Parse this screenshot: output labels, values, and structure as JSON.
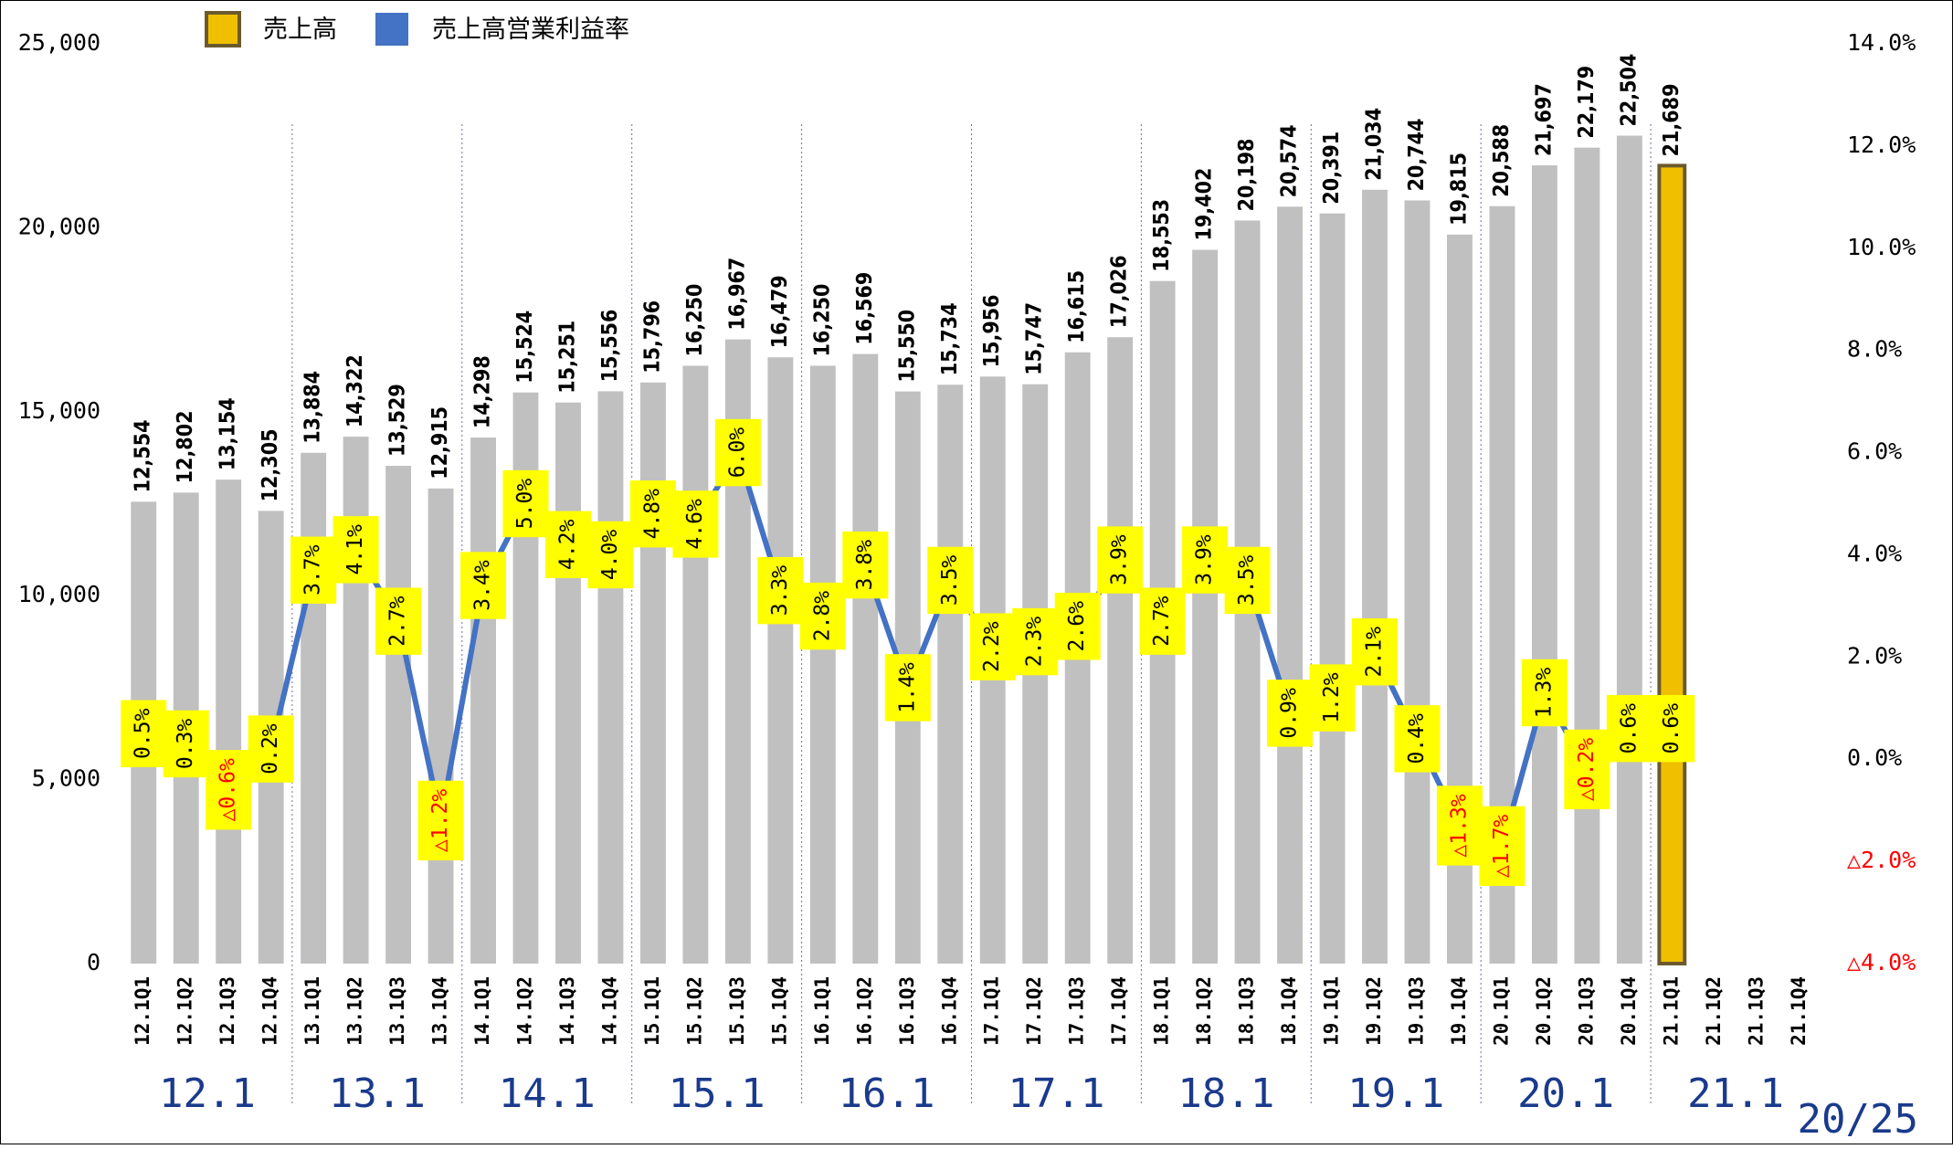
{
  "chart_data": {
    "type": "bar-line",
    "legend": "top-left",
    "categories": [
      "12.1Q1",
      "12.1Q2",
      "12.1Q3",
      "12.1Q4",
      "13.1Q1",
      "13.1Q2",
      "13.1Q3",
      "13.1Q4",
      "14.1Q1",
      "14.1Q2",
      "14.1Q3",
      "14.1Q4",
      "15.1Q1",
      "15.1Q2",
      "15.1Q3",
      "15.1Q4",
      "16.1Q1",
      "16.1Q2",
      "16.1Q3",
      "16.1Q4",
      "17.1Q1",
      "17.1Q2",
      "17.1Q3",
      "17.1Q4",
      "18.1Q1",
      "18.1Q2",
      "18.1Q3",
      "18.1Q4",
      "19.1Q1",
      "19.1Q2",
      "19.1Q3",
      "19.1Q4",
      "20.1Q1",
      "20.1Q2",
      "20.1Q3",
      "20.1Q4",
      "21.1Q1",
      "21.1Q2",
      "21.1Q3",
      "21.1Q4"
    ],
    "groups": [
      "12.1",
      "13.1",
      "14.1",
      "15.1",
      "16.1",
      "17.1",
      "18.1",
      "19.1",
      "20.1",
      "21.1"
    ],
    "page_number": "20/25",
    "series": [
      {
        "name": "売上高",
        "type": "bar",
        "color": "#f0c000",
        "border": "#6b5a2e",
        "colors": [
          "#c0c0c0",
          "#c0c0c0",
          "#c0c0c0",
          "#c0c0c0",
          "#c0c0c0",
          "#c0c0c0",
          "#c0c0c0",
          "#c0c0c0",
          "#c0c0c0",
          "#c0c0c0",
          "#c0c0c0",
          "#c0c0c0",
          "#c0c0c0",
          "#c0c0c0",
          "#c0c0c0",
          "#c0c0c0",
          "#c0c0c0",
          "#c0c0c0",
          "#c0c0c0",
          "#c0c0c0",
          "#c0c0c0",
          "#c0c0c0",
          "#c0c0c0",
          "#c0c0c0",
          "#c0c0c0",
          "#c0c0c0",
          "#c0c0c0",
          "#c0c0c0",
          "#c0c0c0",
          "#c0c0c0",
          "#c0c0c0",
          "#c0c0c0",
          "#c0c0c0",
          "#c0c0c0",
          "#c0c0c0",
          "#c0c0c0",
          "#f0c000",
          "#c0c0c0",
          "#c0c0c0",
          "#c0c0c0"
        ],
        "values": [
          12554,
          12802,
          13154,
          12305,
          13884,
          14322,
          13529,
          12915,
          14298,
          15524,
          15251,
          15556,
          15796,
          16250,
          16967,
          16479,
          16250,
          16569,
          15550,
          15734,
          15956,
          15747,
          16615,
          17026,
          18553,
          19402,
          20198,
          20574,
          20391,
          21034,
          20744,
          19815,
          20588,
          21697,
          22179,
          22504,
          21689,
          null,
          null,
          null
        ],
        "value_labels": [
          "12,554",
          "12,802",
          "13,154",
          "12,305",
          "13,884",
          "14,322",
          "13,529",
          "12,915",
          "14,298",
          "15,524",
          "15,251",
          "15,556",
          "15,796",
          "16,250",
          "16,967",
          "16,479",
          "16,250",
          "16,569",
          "15,550",
          "15,734",
          "15,956",
          "15,747",
          "16,615",
          "17,026",
          "18,553",
          "19,402",
          "20,198",
          "20,574",
          "20,391",
          "21,034",
          "20,744",
          "19,815",
          "20,588",
          "21,697",
          "22,179",
          "22,504",
          "21,689",
          null,
          null,
          null
        ]
      },
      {
        "name": "売上高営業利益率",
        "type": "line",
        "axis": "y2",
        "color": "#4472c4",
        "label_color": "#ffff00",
        "values": [
          0.5,
          0.3,
          -0.6,
          0.2,
          3.7,
          4.1,
          2.7,
          -1.2,
          3.4,
          5.0,
          4.2,
          4.0,
          4.8,
          4.6,
          6.0,
          3.3,
          2.8,
          3.8,
          1.4,
          3.5,
          2.2,
          2.3,
          2.6,
          3.9,
          2.7,
          3.9,
          3.5,
          0.9,
          1.2,
          2.1,
          0.4,
          -1.3,
          -1.7,
          1.3,
          -0.2,
          0.6,
          0.6,
          null,
          null,
          null
        ],
        "value_labels": [
          "0.5%",
          "0.3%",
          "△0.6%",
          "0.2%",
          "3.7%",
          "4.1%",
          "2.7%",
          "△1.2%",
          "3.4%",
          "5.0%",
          "4.2%",
          "4.0%",
          "4.8%",
          "4.6%",
          "6.0%",
          "3.3%",
          "2.8%",
          "3.8%",
          "1.4%",
          "3.5%",
          "2.2%",
          "2.3%",
          "2.6%",
          "3.9%",
          "2.7%",
          "3.9%",
          "3.5%",
          "0.9%",
          "1.2%",
          "2.1%",
          "0.4%",
          "△1.3%",
          "△1.7%",
          "1.3%",
          "△0.2%",
          "0.6%",
          "0.6%",
          null,
          null,
          null
        ]
      }
    ],
    "ylim": [
      0,
      25000
    ],
    "yticks": [
      0,
      {
        "value": 5000,
        "label": "5,000"
      },
      {
        "value": 10000,
        "label": "10,000"
      },
      {
        "value": 15000,
        "label": "15,000"
      },
      {
        "value": 20000,
        "label": "20,000"
      },
      {
        "value": 25000,
        "label": "25,000"
      }
    ],
    "y2lim": [
      -4,
      14
    ],
    "y2ticks": [
      {
        "value": -4,
        "label": "△4.0%"
      },
      {
        "value": -2,
        "label": "△2.0%"
      },
      {
        "value": 0,
        "label": "0.0%"
      },
      {
        "value": 2,
        "label": "2.0%"
      },
      {
        "value": 4,
        "label": "4.0%"
      },
      {
        "value": 6,
        "label": "6.0%"
      },
      {
        "value": 8,
        "label": "8.0%"
      },
      {
        "value": 10,
        "label": "10.0%"
      },
      {
        "value": 12,
        "label": "12.0%"
      },
      {
        "value": 14,
        "label": "14.0%"
      }
    ],
    "negative_color": "#ff0000"
  }
}
